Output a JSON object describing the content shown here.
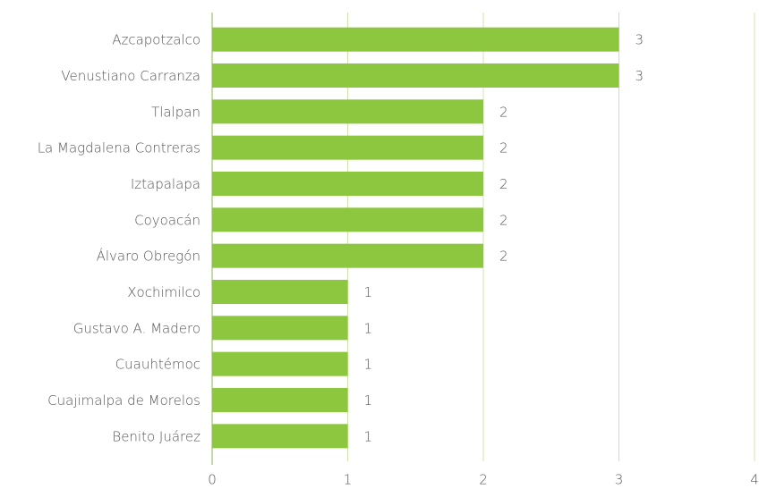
{
  "chart_data": {
    "type": "hbar",
    "categories": [
      "Azcapotzalco",
      "Venustiano Carranza",
      "Tlalpan",
      "La Magdalena Contreras",
      "Iztapalapa",
      "Coyoacán",
      "Álvaro Obregón",
      "Xochimilco",
      "Gustavo A. Madero",
      "Cuauhtémoc",
      "Cuajimalpa de Morelos",
      "Benito Juárez"
    ],
    "values": [
      3,
      3,
      2,
      2,
      2,
      2,
      2,
      1,
      1,
      1,
      1,
      1
    ],
    "color": "#8dc63f",
    "xlim": [
      0,
      4
    ],
    "xticks": [
      0,
      1,
      2,
      3,
      4
    ],
    "grid": true
  }
}
